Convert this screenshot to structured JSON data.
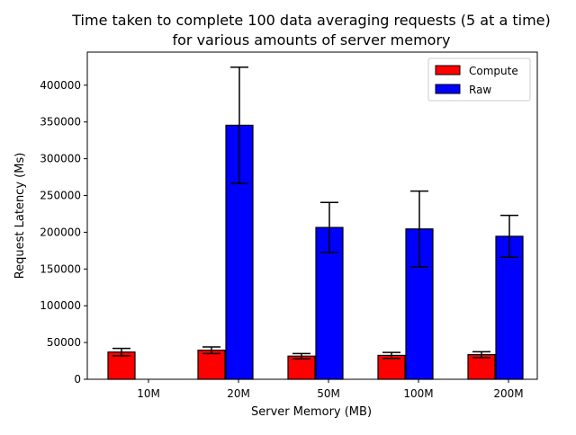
{
  "chart_data": {
    "type": "bar",
    "title": [
      "Time taken to complete 100 data averaging requests (5 at a time)",
      "for various amounts of server memory"
    ],
    "xlabel": "Server Memory (MB)",
    "ylabel": "Request Latency (Ms)",
    "categories": [
      "10M",
      "20M",
      "50M",
      "100M",
      "200M"
    ],
    "ylim": [
      0,
      445000
    ],
    "yticks": [
      0,
      50000,
      100000,
      150000,
      200000,
      250000,
      300000,
      350000,
      400000
    ],
    "ytick_labels": [
      "0",
      "50000",
      "100000",
      "150000",
      "200000",
      "250000",
      "300000",
      "350000",
      "400000"
    ],
    "legend_position": "top-right",
    "grid": false,
    "series": [
      {
        "name": "Compute",
        "color": "#ff0000",
        "values": [
          37000,
          39500,
          31500,
          32500,
          33500
        ],
        "error": [
          5000,
          4500,
          3500,
          4000,
          4000
        ]
      },
      {
        "name": "Raw",
        "color": "#0000ff",
        "values": [
          null,
          345500,
          206500,
          204500,
          194500
        ],
        "error": [
          null,
          79000,
          34000,
          51500,
          28500
        ]
      }
    ]
  }
}
